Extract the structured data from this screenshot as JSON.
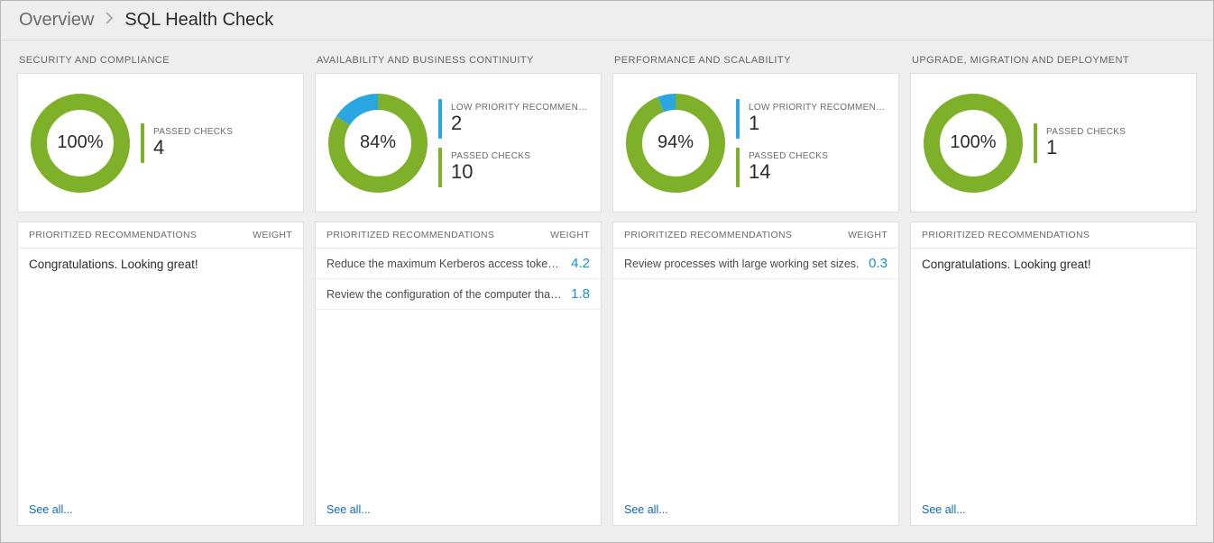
{
  "colors": {
    "page_bg": "#eeeeee",
    "card_bg": "#ffffff",
    "card_border": "#dedede",
    "text_primary": "#2b2b2b",
    "text_muted": "#6b6b6b",
    "link": "#1169b3",
    "weight_value": "#1690d0",
    "donut_green": "#7fb02a",
    "donut_blue": "#2aa7e0"
  },
  "breadcrumb": {
    "root": "Overview",
    "current": "SQL Health Check"
  },
  "labels": {
    "prioritized_recommendations": "PRIORITIZED RECOMMENDATIONS",
    "weight": "WEIGHT",
    "see_all": "See all...",
    "congrats": "Congratulations. Looking great!",
    "low_priority": "LOW PRIORITY RECOMMENDATIO...",
    "passed_checks": "PASSED CHECKS"
  },
  "panels": [
    {
      "key": "security",
      "title": "SECURITY AND COMPLIANCE",
      "chart": {
        "type": "donut",
        "percent": 100,
        "center_text": "100%",
        "green_color": "#7fb02a",
        "blue_color": "#2aa7e0",
        "thickness": 18,
        "diameter": 110
      },
      "metrics": [
        {
          "label_key": "passed_checks",
          "value": "4",
          "bar_color": "#7fb02a"
        }
      ],
      "congrats": true,
      "has_weight_col": true,
      "recs": []
    },
    {
      "key": "availability",
      "title": "AVAILABILITY AND BUSINESS CONTINUITY",
      "chart": {
        "type": "donut",
        "percent": 84,
        "center_text": "84%",
        "green_color": "#7fb02a",
        "blue_color": "#2aa7e0",
        "thickness": 18,
        "diameter": 110
      },
      "metrics": [
        {
          "label_key": "low_priority",
          "value": "2",
          "bar_color": "#2aa7e0"
        },
        {
          "label_key": "passed_checks",
          "value": "10",
          "bar_color": "#7fb02a"
        }
      ],
      "congrats": false,
      "has_weight_col": true,
      "recs": [
        {
          "label": "Reduce the maximum Kerberos access token size.",
          "weight": "4.2"
        },
        {
          "label": "Review the configuration of the computer that is rep...",
          "weight": "1.8"
        }
      ]
    },
    {
      "key": "performance",
      "title": "PERFORMANCE AND SCALABILITY",
      "chart": {
        "type": "donut",
        "percent": 94,
        "center_text": "94%",
        "green_color": "#7fb02a",
        "blue_color": "#2aa7e0",
        "thickness": 18,
        "diameter": 110
      },
      "metrics": [
        {
          "label_key": "low_priority",
          "value": "1",
          "bar_color": "#2aa7e0"
        },
        {
          "label_key": "passed_checks",
          "value": "14",
          "bar_color": "#7fb02a"
        }
      ],
      "congrats": false,
      "has_weight_col": true,
      "recs": [
        {
          "label": "Review processes with large working set sizes.",
          "weight": "0.3"
        }
      ]
    },
    {
      "key": "upgrade",
      "title": "UPGRADE, MIGRATION AND DEPLOYMENT",
      "chart": {
        "type": "donut",
        "percent": 100,
        "center_text": "100%",
        "green_color": "#7fb02a",
        "blue_color": "#2aa7e0",
        "thickness": 18,
        "diameter": 110
      },
      "metrics": [
        {
          "label_key": "passed_checks",
          "value": "1",
          "bar_color": "#7fb02a"
        }
      ],
      "congrats": true,
      "has_weight_col": false,
      "recs": []
    }
  ]
}
